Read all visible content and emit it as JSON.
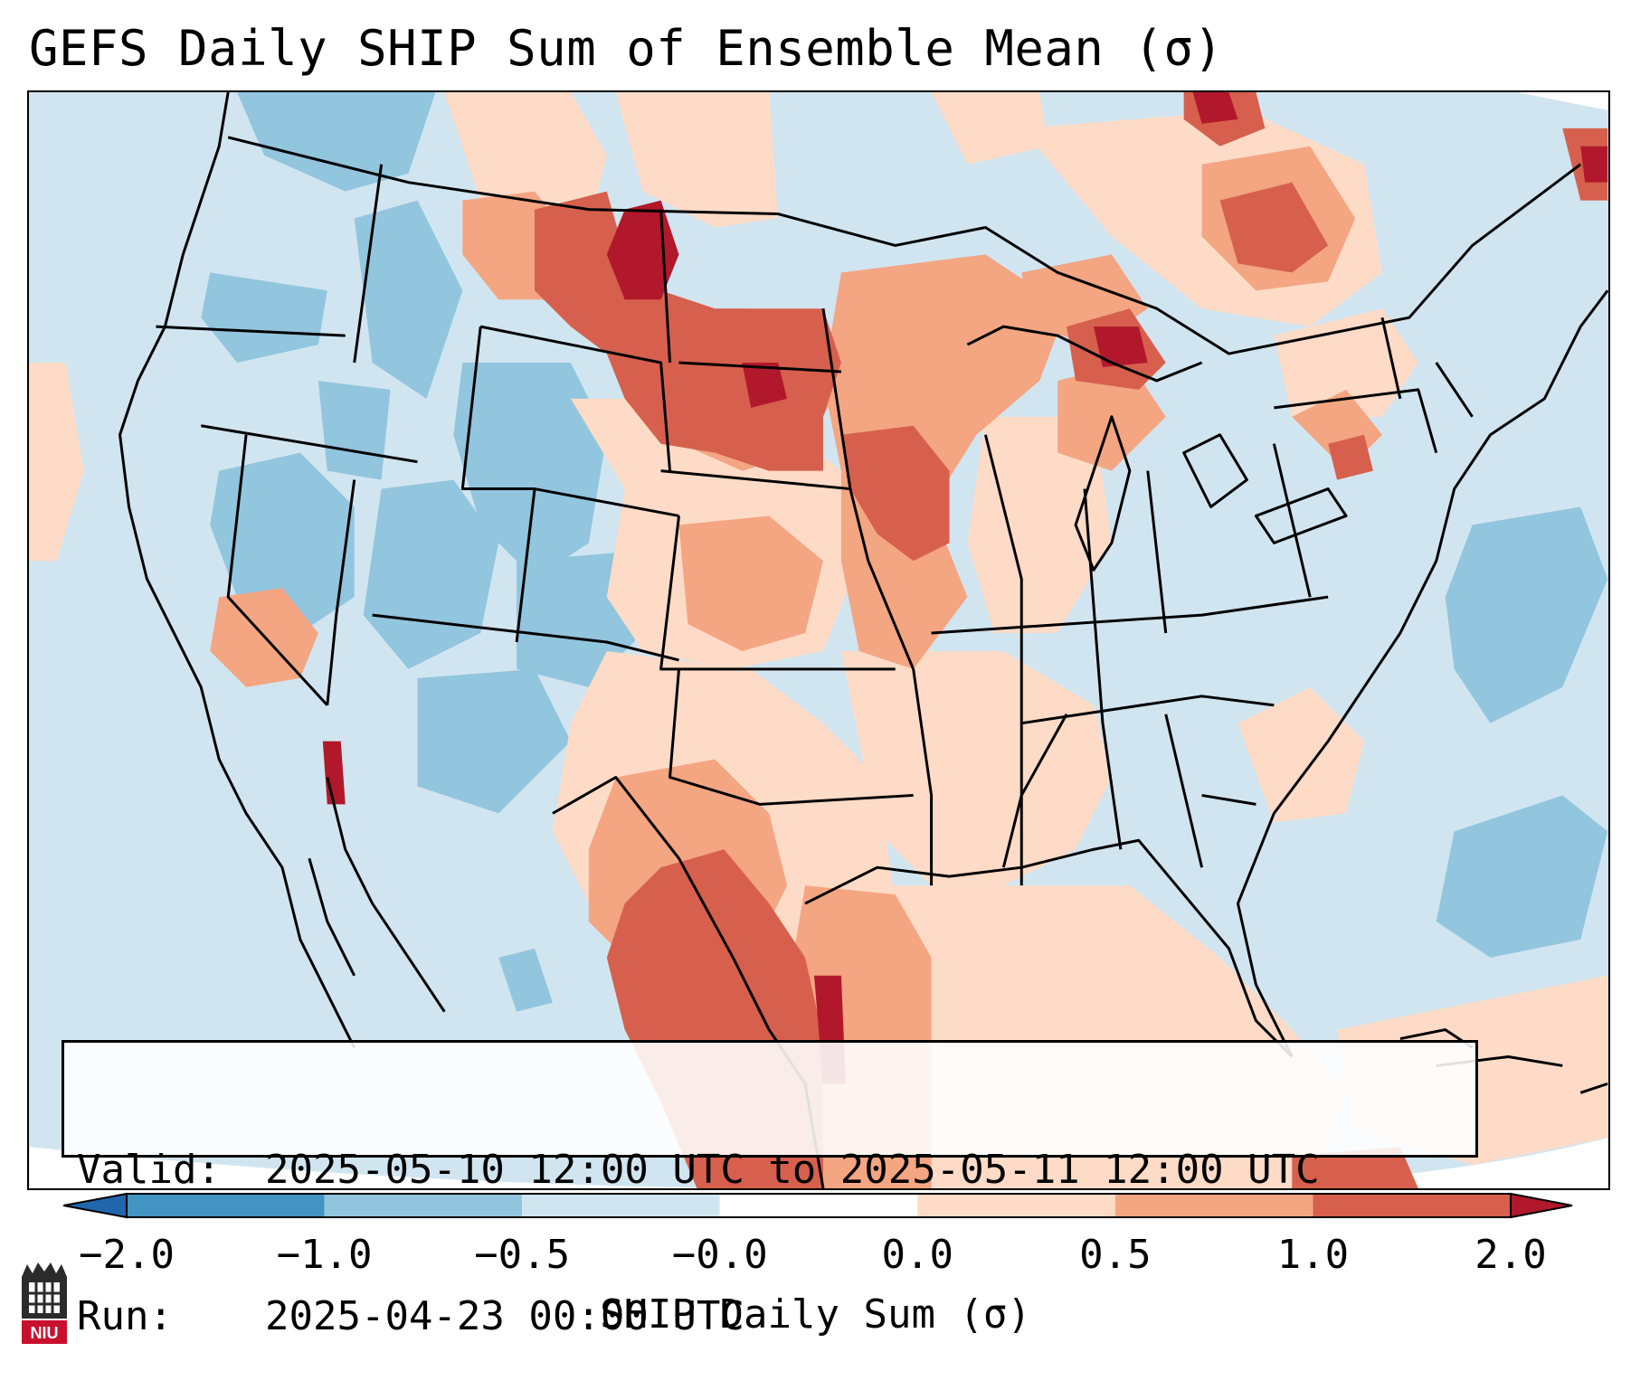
{
  "title": "GEFS Daily SHIP Sum of Ensemble Mean (σ)",
  "info": {
    "valid_label": "Valid:",
    "valid_value": "2025-05-10 12:00 UTC to 2025-05-11 12:00 UTC",
    "run_label": "Run:",
    "run_value": "2025-04-23 00:00 UTC"
  },
  "colorbar": {
    "label": "SHIP Daily Sum (σ)",
    "tick_labels": [
      "−2.0",
      "−1.0",
      "−0.5",
      "−0.0",
      "0.0",
      "0.5",
      "1.0",
      "2.0"
    ],
    "colors": [
      "#2166ac",
      "#4393c3",
      "#92c5de",
      "#d1e5f0",
      "#ffffff",
      "#fddbc7",
      "#f4a582",
      "#d6604d",
      "#b2182b"
    ]
  },
  "map": {
    "ocean_color": "#d1e5f0",
    "anomaly_colors": {
      "neg_strong": "#92c5de",
      "pos_weak": "#fddbc7",
      "pos_mid": "#f4a582",
      "pos_strong": "#d6604d",
      "pos_max": "#b2182b"
    }
  },
  "logo": {
    "text": "NIU"
  }
}
